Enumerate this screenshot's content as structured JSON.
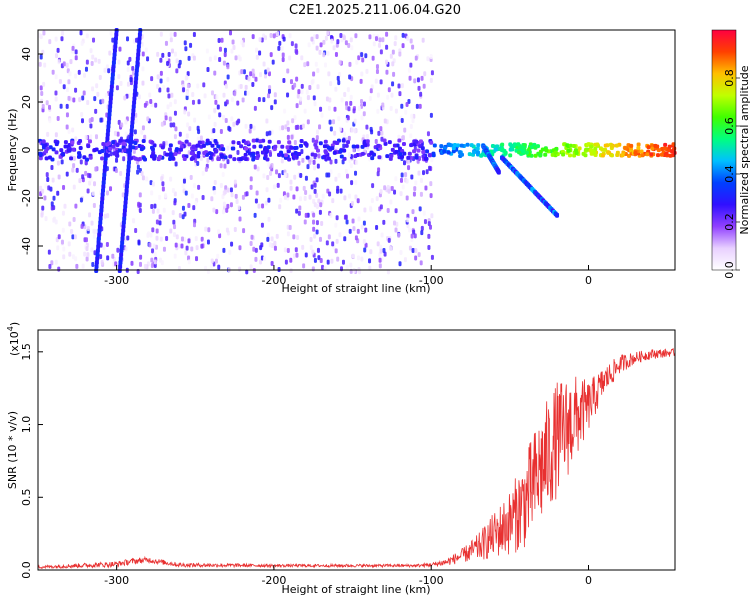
{
  "title": "C2E1.2025.211.06.04.G20",
  "chart_data": [
    {
      "type": "heatmap",
      "xlabel": "Height of straight line (km)",
      "ylabel": "Frequency (Hz)",
      "xlim": [
        -350,
        55
      ],
      "ylim": [
        -50,
        50
      ],
      "xticks": [
        -300,
        -200,
        -100,
        0
      ],
      "yticks": [
        -40,
        -20,
        0,
        20,
        40
      ],
      "colorbar": {
        "label": "Normalized spectral amplitude",
        "range": [
          0,
          1
        ],
        "ticks": [
          "0.0",
          "0.2",
          "0.4",
          "0.6",
          "0.8"
        ],
        "colormap": [
          "#ffffff",
          "#e8d0ff",
          "#9040ff",
          "#3010ff",
          "#0040ff",
          "#00c0ff",
          "#00ff80",
          "#40ff00",
          "#c0ff00",
          "#ffc000",
          "#ff4000",
          "#ff0040"
        ]
      },
      "features": {
        "noise_region_x": [
          -350,
          -100
        ],
        "signal_line": {
          "x": [
            -350,
            55
          ],
          "freq": 0
        },
        "diagonal_streak_1": {
          "x": [
            -313,
            -300
          ],
          "freq": [
            -50,
            50
          ]
        },
        "diagonal_streak_2": {
          "x": [
            -298,
            -285
          ],
          "freq": [
            -50,
            50
          ]
        },
        "branch_1": {
          "x": [
            -67,
            -57
          ],
          "freq": [
            2,
            -9
          ]
        },
        "branch_2": {
          "x": [
            -55,
            -20
          ],
          "freq": [
            -3,
            -27
          ]
        }
      }
    },
    {
      "type": "line",
      "xlabel": "Height of straight line (km)",
      "ylabel": "SNR (10 * v/v)",
      "multiplier_label": "(x10",
      "multiplier_exp": "4",
      "xlim": [
        -350,
        55
      ],
      "ylim": [
        0,
        1.65
      ],
      "xticks": [
        -300,
        -200,
        -100,
        0
      ],
      "yticks": [
        "0.0",
        "0.5",
        "1.0",
        "1.5"
      ],
      "color": "#e83030",
      "envelope": {
        "x": [
          -350,
          -300,
          -290,
          -280,
          -260,
          -200,
          -150,
          -110,
          -100,
          -90,
          -80,
          -70,
          -60,
          -50,
          -40,
          -30,
          -20,
          -10,
          0,
          10,
          20,
          30,
          40,
          55
        ],
        "low": [
          0.01,
          0.02,
          0.04,
          0.05,
          0.02,
          0.02,
          0.02,
          0.02,
          0.02,
          0.03,
          0.05,
          0.06,
          0.08,
          0.1,
          0.15,
          0.3,
          0.5,
          0.7,
          0.95,
          1.2,
          1.35,
          1.42,
          1.45,
          1.47
        ],
        "high": [
          0.03,
          0.06,
          0.08,
          0.09,
          0.05,
          0.04,
          0.04,
          0.04,
          0.05,
          0.08,
          0.15,
          0.25,
          0.4,
          0.55,
          0.8,
          1.1,
          1.3,
          1.35,
          1.3,
          1.4,
          1.48,
          1.5,
          1.52,
          1.52
        ]
      }
    }
  ]
}
